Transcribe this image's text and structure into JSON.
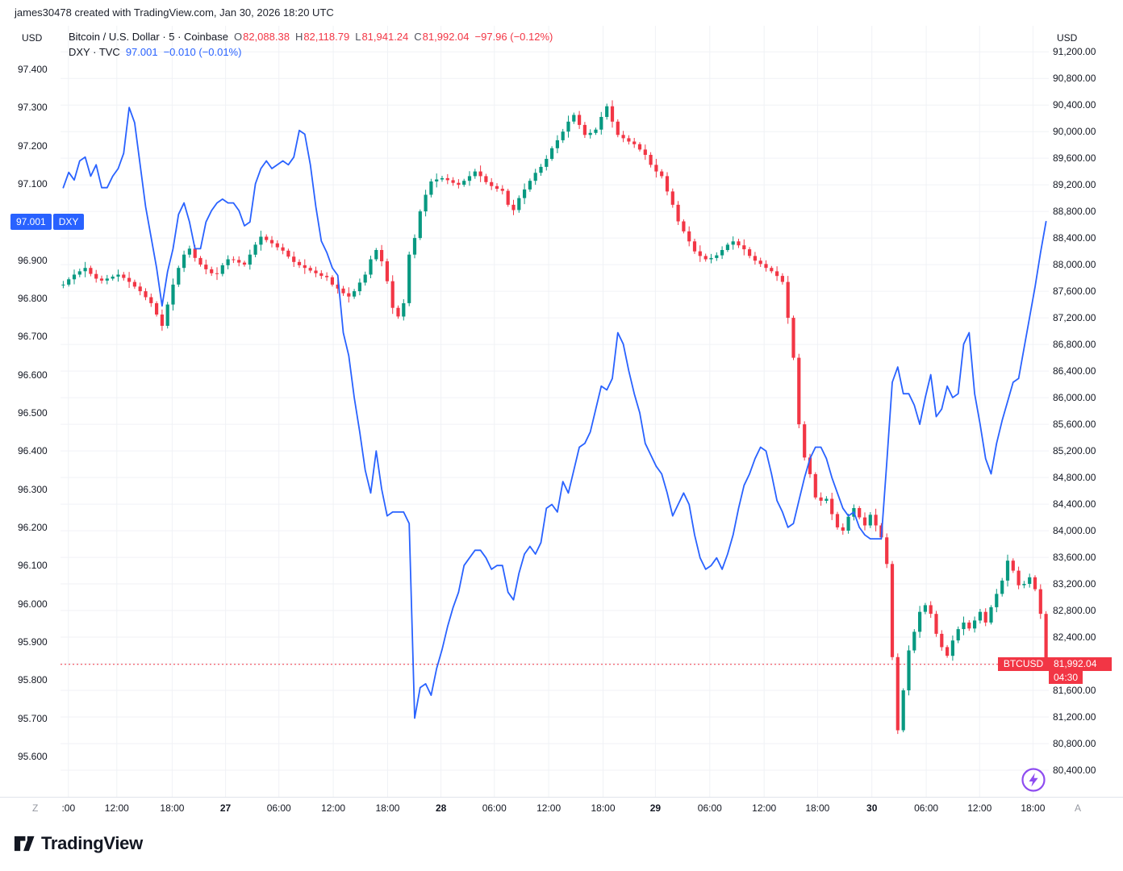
{
  "watermark": "james30478 created with TradingView.com, Jan 30, 2026 18:20 UTC",
  "legend": {
    "line1": {
      "title": "Bitcoin / U.S. Dollar · 5 · Coinbase",
      "o_label": "O",
      "o": "82,088.38",
      "h_label": "H",
      "h": "82,118.79",
      "l_label": "L",
      "l": "81,941.24",
      "c_label": "C",
      "c": "81,992.04",
      "change": "−97.96 (−0.12%)"
    },
    "line2": {
      "title": "DXY · TVC",
      "value": "97.001",
      "change": "−0.010 (−0.01%)"
    }
  },
  "axes": {
    "left_currency": "USD",
    "right_currency": "USD",
    "left_badge": {
      "value": "97.001",
      "tag": "DXY"
    },
    "right_badge": {
      "symbol": "BTCUSD",
      "price": "81,992.04",
      "countdown": "04:30"
    }
  },
  "footer": {
    "logo_text": "TradingView",
    "left_corner": "Z",
    "right_corner": "A"
  },
  "colors": {
    "up": "#089981",
    "down": "#f23645",
    "dxy_line": "#2962ff",
    "badge_blue": "#2962ff",
    "badge_red": "#f23645",
    "grid": "#f0f2f6",
    "text": "#131722",
    "muted": "#9598a1",
    "flash_purple": "#8e4cf0"
  },
  "chart_data": {
    "type": "mixed",
    "title": "Bitcoin / U.S. Dollar · 5 · Coinbase with DXY · TVC overlay",
    "legend_position": "top-left",
    "grid": true,
    "left_axis": {
      "min": 95.494,
      "max": 97.514,
      "ticks": [
        [
          97.4,
          "97.400"
        ],
        [
          97.3,
          "97.300"
        ],
        [
          97.2,
          "97.200"
        ],
        [
          97.1,
          "97.100"
        ],
        [
          96.9,
          "96.900"
        ],
        [
          96.8,
          "96.800"
        ],
        [
          96.7,
          "96.700"
        ],
        [
          96.6,
          "96.600"
        ],
        [
          96.5,
          "96.500"
        ],
        [
          96.4,
          "96.400"
        ],
        [
          96.3,
          "96.300"
        ],
        [
          96.2,
          "96.200"
        ],
        [
          96.1,
          "96.100"
        ],
        [
          96.0,
          "96.000"
        ],
        [
          95.9,
          "95.900"
        ],
        [
          95.8,
          "95.800"
        ],
        [
          95.7,
          "95.700"
        ],
        [
          95.6,
          "95.600"
        ]
      ],
      "hidden_tick_behind_badge": 97.0
    },
    "right_axis": {
      "min": 80000,
      "max": 91590,
      "ticks": [
        [
          91200,
          "91,200.00"
        ],
        [
          90800,
          "90,800.00"
        ],
        [
          90400,
          "90,400.00"
        ],
        [
          90000,
          "90,000.00"
        ],
        [
          89600,
          "89,600.00"
        ],
        [
          89200,
          "89,200.00"
        ],
        [
          88800,
          "88,800.00"
        ],
        [
          88400,
          "88,400.00"
        ],
        [
          88000,
          "88,000.00"
        ],
        [
          87600,
          "87,600.00"
        ],
        [
          87200,
          "87,200.00"
        ],
        [
          86800,
          "86,800.00"
        ],
        [
          86400,
          "86,400.00"
        ],
        [
          86000,
          "86,000.00"
        ],
        [
          85600,
          "85,600.00"
        ],
        [
          85200,
          "85,200.00"
        ],
        [
          84800,
          "84,800.00"
        ],
        [
          84400,
          "84,400.00"
        ],
        [
          84000,
          "84,000.00"
        ],
        [
          83600,
          "83,600.00"
        ],
        [
          83200,
          "83,200.00"
        ],
        [
          82800,
          "82,800.00"
        ],
        [
          82400,
          "82,400.00"
        ],
        [
          81600,
          "81,600.00"
        ],
        [
          81200,
          "81,200.00"
        ],
        [
          80800,
          "80,800.00"
        ],
        [
          80400,
          "80,400.00"
        ]
      ],
      "grid_extra": [
        82000
      ],
      "hidden_tick_behind_badge": 82000
    },
    "time_ticks": [
      [
        0.008,
        ":00",
        0
      ],
      [
        0.057,
        "12:00",
        0
      ],
      [
        0.113,
        "18:00",
        0
      ],
      [
        0.167,
        "27",
        1
      ],
      [
        0.221,
        "06:00",
        0
      ],
      [
        0.276,
        "12:00",
        0
      ],
      [
        0.331,
        "18:00",
        0
      ],
      [
        0.385,
        "28",
        1
      ],
      [
        0.439,
        "06:00",
        0
      ],
      [
        0.494,
        "12:00",
        0
      ],
      [
        0.549,
        "18:00",
        0
      ],
      [
        0.602,
        "29",
        1
      ],
      [
        0.657,
        "06:00",
        0
      ],
      [
        0.712,
        "12:00",
        0
      ],
      [
        0.766,
        "18:00",
        0
      ],
      [
        0.821,
        "30",
        1
      ],
      [
        0.876,
        "06:00",
        0
      ],
      [
        0.93,
        "12:00",
        0
      ],
      [
        0.984,
        "18:00",
        0
      ]
    ],
    "series": [
      {
        "name": "BTCUSD",
        "type": "candle",
        "axis": "right",
        "exchange": "Coinbase",
        "interval": "5",
        "ohlc": {
          "open": 82088.38,
          "high": 82118.79,
          "low": 81941.24,
          "close": 81992.04,
          "change": -97.96,
          "change_pct": -0.12
        },
        "last_close": 81992.04,
        "wick_pads": [
          55,
          30,
          75,
          40,
          90,
          35,
          60,
          45
        ],
        "closes": [
          87700,
          87780,
          87850,
          87900,
          87950,
          87860,
          87790,
          87760,
          87790,
          87820,
          87850,
          87800,
          87740,
          87670,
          87600,
          87510,
          87420,
          87250,
          87080,
          87400,
          87700,
          87950,
          88150,
          88240,
          88100,
          88000,
          87930,
          87870,
          87860,
          87990,
          88080,
          88070,
          88030,
          88000,
          88150,
          88300,
          88420,
          88370,
          88320,
          88260,
          88210,
          88120,
          88040,
          87990,
          87950,
          87910,
          87870,
          87830,
          87810,
          87700,
          87640,
          87570,
          87520,
          87600,
          87730,
          87850,
          88080,
          88220,
          88050,
          87750,
          87350,
          87220,
          87420,
          88150,
          88400,
          88800,
          89050,
          89250,
          89280,
          89300,
          89270,
          89230,
          89200,
          89260,
          89330,
          89400,
          89330,
          89240,
          89180,
          89140,
          89110,
          88900,
          88820,
          89000,
          89130,
          89260,
          89380,
          89470,
          89590,
          89750,
          89870,
          90000,
          90150,
          90250,
          90100,
          89950,
          89980,
          90030,
          90220,
          90380,
          90150,
          89950,
          89900,
          89850,
          89810,
          89730,
          89650,
          89500,
          89400,
          89330,
          89100,
          88900,
          88650,
          88500,
          88350,
          88200,
          88130,
          88080,
          88100,
          88140,
          88220,
          88300,
          88350,
          88290,
          88230,
          88130,
          88060,
          88010,
          87950,
          87900,
          87830,
          87740,
          87200,
          86600,
          85600,
          85100,
          84850,
          84500,
          84450,
          84480,
          84250,
          84050,
          84000,
          84210,
          84340,
          84200,
          84080,
          84240,
          84080,
          83900,
          83500,
          82100,
          81000,
          81600,
          82200,
          82480,
          82780,
          82880,
          82750,
          82450,
          82250,
          82120,
          82350,
          82520,
          82620,
          82530,
          82650,
          82780,
          82620,
          82850,
          83050,
          83250,
          83550,
          83400,
          83180,
          83200,
          83300,
          83120,
          82750,
          81992.04
        ]
      },
      {
        "name": "DXY",
        "type": "line",
        "axis": "left",
        "exchange": "TVC",
        "current": 97.001,
        "change": -0.01,
        "change_pct": -0.01,
        "values": [
          97.09,
          97.13,
          97.11,
          97.16,
          97.17,
          97.12,
          97.15,
          97.09,
          97.09,
          97.12,
          97.14,
          97.18,
          97.3,
          97.26,
          97.15,
          97.04,
          96.96,
          96.88,
          96.78,
          96.87,
          96.93,
          97.02,
          97.05,
          97.0,
          96.93,
          96.93,
          97.0,
          97.03,
          97.05,
          97.06,
          97.05,
          97.05,
          97.03,
          96.99,
          97.0,
          97.1,
          97.14,
          97.16,
          97.14,
          97.15,
          97.16,
          97.15,
          97.17,
          97.24,
          97.23,
          97.15,
          97.04,
          96.95,
          96.92,
          96.88,
          96.86,
          96.71,
          96.65,
          96.54,
          96.45,
          96.35,
          96.29,
          96.4,
          96.3,
          96.23,
          96.24,
          96.24,
          96.24,
          96.21,
          95.7,
          95.78,
          95.79,
          95.76,
          95.83,
          95.88,
          95.94,
          95.99,
          96.03,
          96.1,
          96.12,
          96.14,
          96.14,
          96.12,
          96.09,
          96.1,
          96.1,
          96.03,
          96.01,
          96.08,
          96.13,
          96.15,
          96.13,
          96.16,
          96.25,
          96.26,
          96.24,
          96.32,
          96.29,
          96.35,
          96.41,
          96.42,
          96.45,
          96.51,
          96.57,
          96.56,
          96.59,
          96.71,
          96.68,
          96.61,
          96.55,
          96.5,
          96.42,
          96.39,
          96.36,
          96.34,
          96.29,
          96.23,
          96.26,
          96.29,
          96.26,
          96.18,
          96.12,
          96.09,
          96.1,
          96.12,
          96.09,
          96.13,
          96.18,
          96.25,
          96.31,
          96.34,
          96.38,
          96.41,
          96.4,
          96.34,
          96.27,
          96.24,
          96.2,
          96.21,
          96.27,
          96.33,
          96.38,
          96.41,
          96.41,
          96.38,
          96.33,
          96.29,
          96.25,
          96.23,
          96.24,
          96.2,
          96.18,
          96.17,
          96.17,
          96.17,
          96.37,
          96.58,
          96.62,
          96.55,
          96.55,
          96.52,
          96.47,
          96.54,
          96.6,
          96.49,
          96.51,
          96.57,
          96.54,
          96.55,
          96.68,
          96.71,
          96.55,
          96.47,
          96.38,
          96.34,
          96.42,
          96.48,
          96.53,
          96.58,
          96.59,
          96.67,
          96.75,
          96.83,
          96.92,
          97.001
        ]
      }
    ]
  }
}
